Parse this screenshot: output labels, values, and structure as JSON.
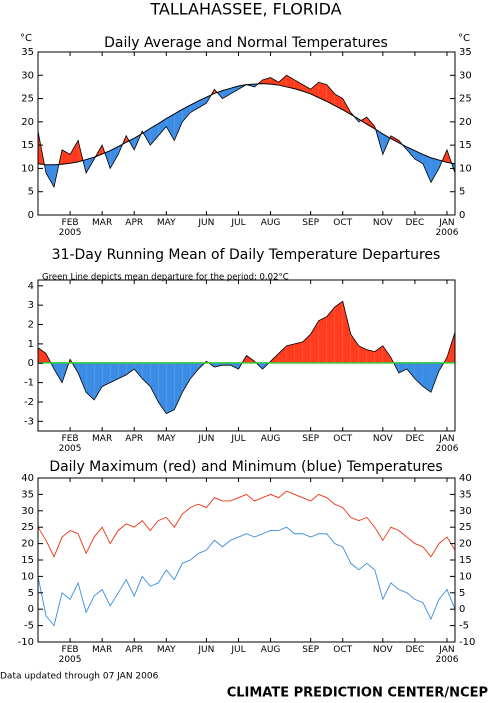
{
  "title": "TALLAHASSEE, FLORIDA",
  "chart_data": [
    {
      "type": "difference",
      "title": "Daily Average and Normal Temperatures",
      "ylabel": "°C",
      "y2label": "°C",
      "categories": [
        null,
        null,
        null,
        null,
        "FEB\n2005",
        null,
        null,
        null,
        "MAR",
        null,
        null,
        null,
        "APR",
        null,
        null,
        null,
        "MAY",
        null,
        null,
        null,
        null,
        "JUN",
        null,
        null,
        null,
        "JUL",
        null,
        null,
        null,
        "AUG",
        null,
        null,
        null,
        null,
        "SEP",
        null,
        null,
        null,
        "OCT",
        null,
        null,
        null,
        null,
        "NOV",
        null,
        null,
        null,
        "DEC",
        null,
        null,
        null,
        "JAN\n2006",
        null
      ],
      "series": [
        {
          "color": "#000000",
          "values": [
            18,
            9,
            6,
            14,
            13,
            16,
            9,
            12,
            15,
            10,
            13,
            17,
            14,
            18,
            15,
            17,
            19,
            16,
            20,
            22,
            23,
            24,
            27,
            25,
            26,
            27,
            28,
            27.5,
            29,
            29.5,
            28.5,
            30,
            29,
            28,
            27,
            28.5,
            28,
            26,
            25,
            22,
            20,
            21,
            19,
            13,
            17,
            16,
            14,
            12,
            11,
            7,
            10,
            14,
            9
          ]
        },
        {
          "color": "#000000",
          "values": [
            11.0,
            10.8,
            10.8,
            10.9,
            11.1,
            11.4,
            11.9,
            12.4,
            13.1,
            13.8,
            14.7,
            15.6,
            16.5,
            17.5,
            18.6,
            19.6,
            20.7,
            21.7,
            22.7,
            23.6,
            24.5,
            25.3,
            26.1,
            26.7,
            27.2,
            27.7,
            28.0,
            28.1,
            28.2,
            28.1,
            27.9,
            27.5,
            27.1,
            26.6,
            26.0,
            25.2,
            24.4,
            23.5,
            22.6,
            21.6,
            20.6,
            19.5,
            18.5,
            17.4,
            16.4,
            15.5,
            14.6,
            13.8,
            13.0,
            12.3,
            11.8,
            11.3,
            11.0
          ]
        }
      ],
      "above_color": "#ff3c1e",
      "below_color": "#3c8ce6",
      "ylim": [
        0,
        35
      ],
      "yticks": [
        0,
        5,
        10,
        15,
        20,
        25,
        30,
        35
      ],
      "y2lim": [
        0,
        35
      ],
      "y2ticks": [
        0,
        5,
        10,
        15,
        20,
        25,
        30,
        35
      ]
    },
    {
      "type": "area",
      "title": "31-Day Running Mean of Daily Temperature Departures",
      "annotation": "Green Line depicts mean departure for the period: 0.02°C",
      "mean_line": 0.02,
      "mean_color": "#33cc33",
      "categories": [
        null,
        null,
        null,
        null,
        "FEB\n2005",
        null,
        null,
        null,
        "MAR",
        null,
        null,
        null,
        "APR",
        null,
        null,
        null,
        "MAY",
        null,
        null,
        null,
        null,
        "JUN",
        null,
        null,
        null,
        "JUL",
        null,
        null,
        null,
        "AUG",
        null,
        null,
        null,
        null,
        "SEP",
        null,
        null,
        null,
        "OCT",
        null,
        null,
        null,
        null,
        "NOV",
        null,
        null,
        null,
        "DEC",
        null,
        null,
        null,
        "JAN\n2006",
        null
      ],
      "series": [
        {
          "color": "#000000",
          "values": [
            0.8,
            0.5,
            -0.3,
            -1.0,
            0.2,
            -0.5,
            -1.5,
            -1.9,
            -1.2,
            -1.0,
            -0.8,
            -0.6,
            -0.3,
            -0.8,
            -1.2,
            -2.0,
            -2.6,
            -2.4,
            -1.5,
            -0.8,
            -0.3,
            0.1,
            -0.2,
            -0.1,
            -0.1,
            -0.3,
            0.4,
            0.1,
            -0.3,
            0.1,
            0.5,
            0.9,
            1.0,
            1.1,
            1.5,
            2.2,
            2.4,
            2.9,
            3.2,
            1.5,
            0.9,
            0.7,
            0.6,
            0.9,
            0.3,
            -0.5,
            -0.3,
            -0.8,
            -1.2,
            -1.5,
            -0.4,
            0.3,
            1.6
          ]
        }
      ],
      "above_color": "#ff3c1e",
      "below_color": "#3c8ce6",
      "ylim": [
        -3.5,
        4.3
      ],
      "yticks": [
        -3,
        -2,
        -1,
        0,
        1,
        2,
        3,
        4
      ]
    },
    {
      "type": "line",
      "title": "Daily Maximum (red) and Minimum (blue) Temperatures",
      "categories": [
        null,
        null,
        null,
        null,
        "FEB\n2005",
        null,
        null,
        null,
        "MAR",
        null,
        null,
        null,
        "APR",
        null,
        null,
        null,
        "MAY",
        null,
        null,
        null,
        null,
        "JUN",
        null,
        null,
        null,
        "JUL",
        null,
        null,
        null,
        "AUG",
        null,
        null,
        null,
        null,
        "SEP",
        null,
        null,
        null,
        "OCT",
        null,
        null,
        null,
        null,
        "NOV",
        null,
        null,
        null,
        "DEC",
        null,
        null,
        null,
        "JAN\n2006",
        null
      ],
      "series": [
        {
          "color": "#ee3311",
          "values": [
            25,
            21,
            16,
            22,
            24,
            23,
            17,
            22,
            25,
            20,
            24,
            26,
            25,
            27,
            24,
            27,
            28,
            25,
            29,
            31,
            32,
            31,
            34,
            33,
            33,
            34,
            35,
            33,
            34,
            35,
            34,
            36,
            35,
            34,
            33,
            35,
            34,
            32,
            31,
            28,
            27,
            28,
            25,
            21,
            25,
            24,
            22,
            20,
            19,
            16,
            20,
            22,
            18
          ]
        },
        {
          "color": "#3a8de0",
          "values": [
            10,
            -2,
            -5,
            5,
            3,
            8,
            -1,
            4,
            6,
            1,
            5,
            9,
            4,
            10,
            7,
            8,
            12,
            9,
            14,
            15,
            17,
            18,
            21,
            19,
            21,
            22,
            23,
            22,
            23,
            24,
            24,
            25,
            23,
            23,
            22,
            23,
            23,
            20,
            19,
            14,
            12,
            14,
            12,
            3,
            8,
            6,
            5,
            3,
            2,
            -3,
            3,
            6,
            0
          ]
        }
      ],
      "ylim": [
        -10,
        40
      ],
      "yticks": [
        -10,
        -5,
        0,
        5,
        10,
        15,
        20,
        25,
        30,
        35,
        40
      ],
      "y2lim": [
        -10,
        40
      ],
      "y2ticks": [
        -10,
        -5,
        0,
        5,
        10,
        15,
        20,
        25,
        30,
        35,
        40
      ]
    }
  ],
  "footer": {
    "updated": "Data updated through 07 JAN 2006",
    "source": "CLIMATE PREDICTION CENTER/NCEP"
  }
}
